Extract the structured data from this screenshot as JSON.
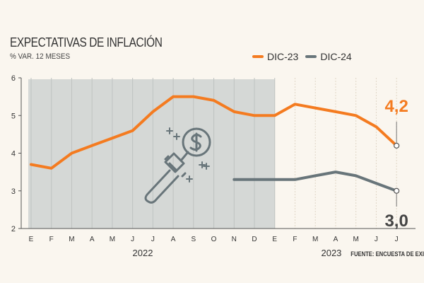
{
  "title": "EXPECTATIVAS DE INFLACIÓN",
  "subtitle": "% VAR. 12 MESES",
  "source": "FUENTE: ENCUESTA DE EXI",
  "colors": {
    "dic23": "#f47b20",
    "dic24": "#68757a",
    "shade": "#d5d8d6",
    "icon": "#68757a",
    "background": "#faf6ef"
  },
  "icon": "magnifying-glass-dollar-icon",
  "chart_data": {
    "type": "line",
    "title": "EXPECTATIVAS DE INFLACIÓN",
    "ylabel": "% VAR. 12 MESES",
    "ylim": [
      2,
      6
    ],
    "yticks": [
      "2",
      "3",
      "4",
      "5",
      "6"
    ],
    "x": [
      "E",
      "F",
      "M",
      "A",
      "M",
      "J",
      "J",
      "A",
      "S",
      "O",
      "N",
      "D",
      "E",
      "F",
      "M",
      "A",
      "M",
      "J",
      "J"
    ],
    "year_labels": [
      {
        "label": "2022",
        "start": 0,
        "end": 11
      },
      {
        "label": "2023",
        "start": 12,
        "end": 18
      }
    ],
    "shaded_range": [
      0,
      12
    ],
    "grid": "vertical",
    "legend_position": "top-right",
    "series": [
      {
        "name": "DIC-23",
        "color": "#f47b20",
        "values": [
          3.7,
          3.6,
          4.0,
          4.2,
          4.4,
          4.6,
          5.1,
          5.5,
          5.5,
          5.4,
          5.1,
          5.0,
          5.0,
          5.3,
          5.2,
          5.1,
          5.0,
          4.7,
          4.2
        ],
        "end_label": "4,2"
      },
      {
        "name": "DIC-24",
        "color": "#68757a",
        "values": [
          null,
          null,
          null,
          null,
          null,
          null,
          null,
          null,
          null,
          null,
          3.3,
          3.3,
          3.3,
          3.3,
          3.4,
          3.5,
          3.4,
          3.2,
          3.0
        ],
        "end_label": "3,0"
      }
    ]
  }
}
